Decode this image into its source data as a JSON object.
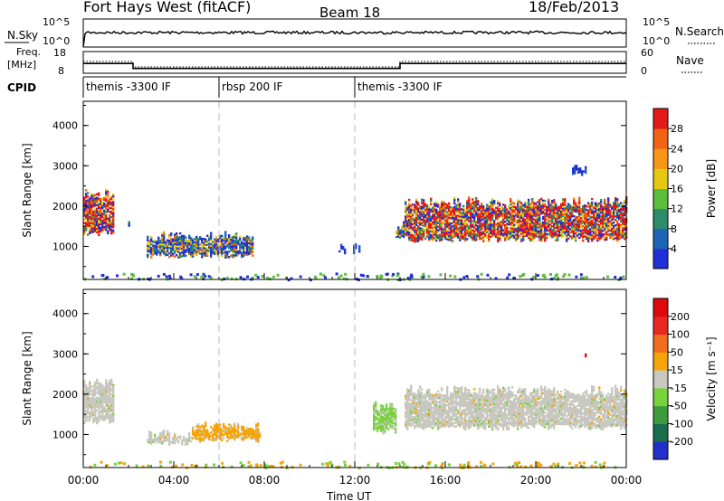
{
  "header": {
    "station": "Fort Hays West (fitACF)",
    "beam": "Beam 18",
    "date": "18/Feb/2013"
  },
  "housekeeping": {
    "nsky_label": "N.Sky",
    "nsky_ticks": [
      "10^5",
      "10^0"
    ],
    "nsearch_label": "N.Search",
    "nsearch_ticks": [
      "10^5",
      "10^0"
    ],
    "freq_label_1": "Freq.",
    "freq_label_2": "[MHz]",
    "freq_ticks": [
      "18",
      "8"
    ],
    "nave_label": "Nave",
    "nave_ticks": [
      "60",
      "0"
    ],
    "cpid_label": "CPID",
    "cpid_segments": [
      {
        "label": "themis -3300 IF",
        "start": "00:00",
        "end": "06:00"
      },
      {
        "label": "rbsp 200 IF",
        "start": "06:00",
        "end": "12:00"
      },
      {
        "label": "themis -3300 IF",
        "start": "12:00",
        "end": "24:00"
      }
    ],
    "freq_steps": [
      {
        "start": 0,
        "end": 2.2,
        "mhz": 12.5
      },
      {
        "start": 2.2,
        "end": 14.0,
        "mhz": 10.2
      },
      {
        "start": 14.0,
        "end": 24.0,
        "mhz": 12.5
      }
    ]
  },
  "chart_data": [
    {
      "type": "heatmap",
      "quantity": "Power",
      "ylabel": "Slant Range [km]",
      "ylim": [
        180,
        4600
      ],
      "yticks": [
        "1000",
        "2000",
        "3000",
        "4000"
      ],
      "xlim": [
        0,
        24
      ],
      "colorbar_label": "Power [dB]",
      "colorbar_ticks": [
        "4",
        "8",
        "12",
        "16",
        "20",
        "24",
        "28"
      ],
      "colorbar_colors": [
        "#2030d8",
        "#1e64b4",
        "#2e8c6a",
        "#5abe3c",
        "#e6c814",
        "#f59614",
        "#f06414",
        "#e31a1c"
      ],
      "echo_regions": [
        {
          "t0": 0.0,
          "t1": 1.3,
          "r0": 1250,
          "r1": 2400,
          "level": "strong"
        },
        {
          "t0": 1.9,
          "t1": 2.1,
          "r0": 1400,
          "r1": 1600,
          "level": "medium"
        },
        {
          "t0": 2.8,
          "t1": 7.5,
          "r0": 700,
          "r1": 1350,
          "level": "medium"
        },
        {
          "t0": 11.2,
          "t1": 12.2,
          "r0": 800,
          "r1": 1050,
          "level": "weak"
        },
        {
          "t0": 13.8,
          "t1": 14.2,
          "r0": 1200,
          "r1": 1600,
          "level": "medium"
        },
        {
          "t0": 14.2,
          "t1": 24.0,
          "r0": 1100,
          "r1": 2200,
          "level": "strong"
        },
        {
          "t0": 21.6,
          "t1": 22.2,
          "r0": 2700,
          "r1": 3100,
          "level": "weak"
        }
      ]
    },
    {
      "type": "heatmap",
      "quantity": "Velocity",
      "ylabel": "Slant Range [km]",
      "ylim": [
        180,
        4600
      ],
      "yticks": [
        "1000",
        "2000",
        "3000",
        "4000"
      ],
      "xlim": [
        0,
        24
      ],
      "xticks": [
        "00:00",
        "04:00",
        "08:00",
        "12:00",
        "16:00",
        "20:00",
        "00:00"
      ],
      "xlabel": "Time UT",
      "colorbar_label": "Velocity [m s⁻¹]",
      "colorbar_ticks": [
        "200",
        "100",
        "50",
        "15",
        "-15",
        "-50",
        "-100",
        "-200"
      ],
      "colorbar_colors": [
        "#2030c8",
        "#1a6e4e",
        "#3c9c3c",
        "#78d23c",
        "#c8c8c0",
        "#f5a50a",
        "#f06e1e",
        "#e62820",
        "#dc0a0a"
      ],
      "echo_regions": [
        {
          "t0": 0.0,
          "t1": 1.3,
          "r0": 1250,
          "r1": 2400,
          "level": "ground"
        },
        {
          "t0": 2.8,
          "t1": 4.8,
          "r0": 700,
          "r1": 1100,
          "level": "ground"
        },
        {
          "t0": 4.8,
          "t1": 7.8,
          "r0": 800,
          "r1": 1300,
          "level": "away"
        },
        {
          "t0": 12.8,
          "t1": 13.8,
          "r0": 1000,
          "r1": 1800,
          "level": "toward"
        },
        {
          "t0": 14.2,
          "t1": 24.0,
          "r0": 1100,
          "r1": 2200,
          "level": "ground"
        },
        {
          "t0": 22.0,
          "t1": 22.3,
          "r0": 2900,
          "r1": 3050,
          "level": "strong_away"
        }
      ]
    }
  ]
}
